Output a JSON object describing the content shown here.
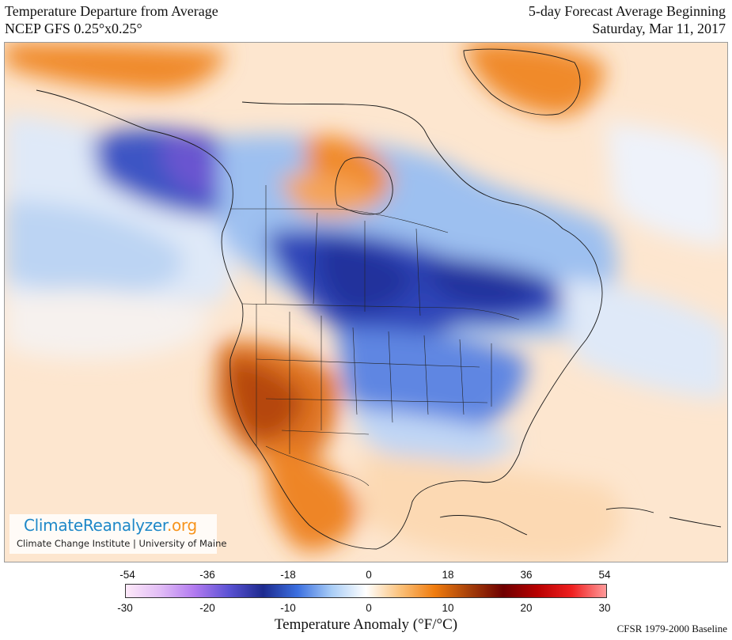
{
  "header": {
    "title_line1": "Temperature Departure from Average",
    "title_line2": "NCEP GFS 0.25°x0.25°",
    "forecast_line1": "5-day Forecast Average Beginning",
    "forecast_line2": "Saturday, Mar 11, 2017"
  },
  "brand": {
    "name_main": "ClimateReanalyzer",
    "name_tld": ".org",
    "subtitle": "Climate Change Institute | University of Maine"
  },
  "legend": {
    "title": "Temperature Anomaly (°F/°C)",
    "fahrenheit_ticks": [
      "-54",
      "-36",
      "-18",
      "0",
      "18",
      "36",
      "54"
    ],
    "celsius_ticks": [
      "-30",
      "-20",
      "-10",
      "0",
      "10",
      "20",
      "30"
    ],
    "baseline": "CFSR 1979-2000 Baseline",
    "colors": [
      "#fde9f9",
      "#e2bdf6",
      "#b27af0",
      "#5b52d4",
      "#1d2a8e",
      "#3b6fe0",
      "#a9cdf6",
      "#ffffff",
      "#fbc17a",
      "#f07c0e",
      "#a6400a",
      "#6e0000",
      "#b80000",
      "#ef2020",
      "#ff9a9a"
    ]
  },
  "map": {
    "region": "North America",
    "anomaly_colors": {
      "strong_cold": "#3a2a9c",
      "cold": "#3f64d4",
      "cool": "#a9cbf2",
      "neutral": "#f4f6fb",
      "mild": "#fccf9f",
      "warm": "#f08a2a",
      "hot": "#b5470e"
    }
  }
}
